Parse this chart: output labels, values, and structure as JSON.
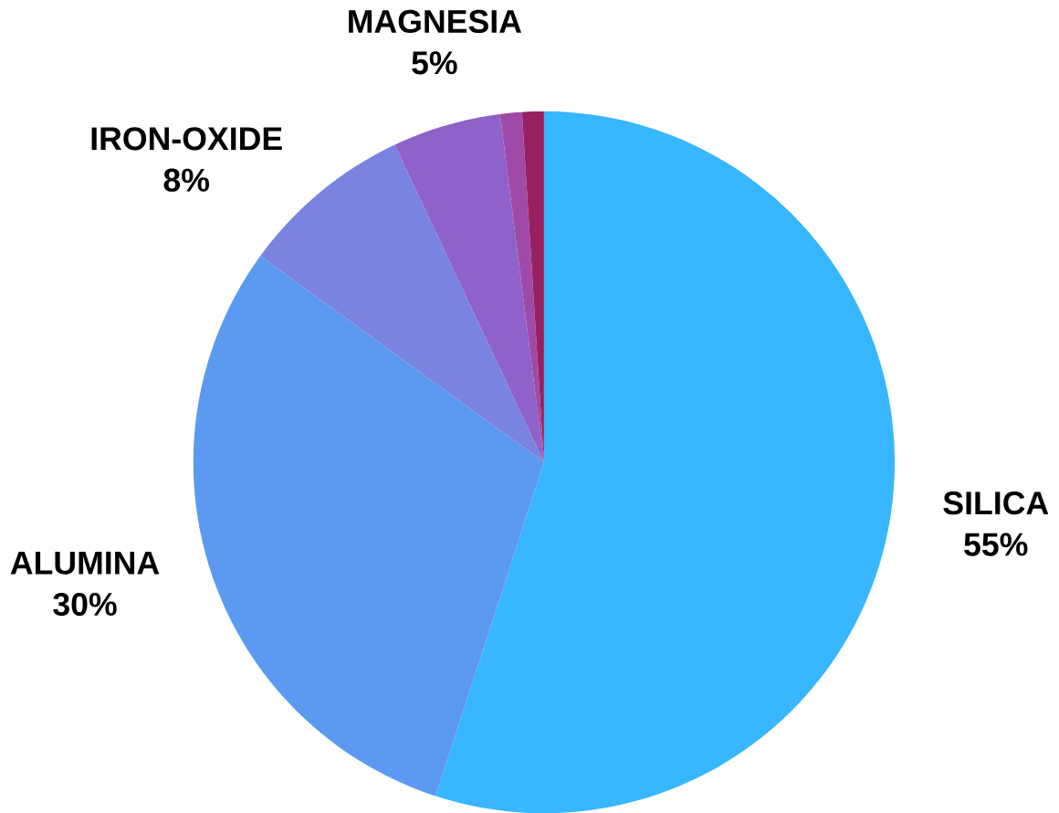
{
  "chart_data": {
    "type": "pie",
    "categories": [
      "SILICA",
      "ALUMINA",
      "IRON-OXIDE",
      "MAGNESIA",
      null,
      null
    ],
    "values": [
      55,
      30,
      8,
      5,
      1,
      1
    ],
    "value_labels": [
      "55%",
      "30%",
      "8%",
      "5%",
      null,
      null
    ],
    "colors": [
      "#38b6ff",
      "#5b9af0",
      "#7a84e0",
      "#8e62c8",
      "#a04aa8",
      "#962060"
    ]
  }
}
